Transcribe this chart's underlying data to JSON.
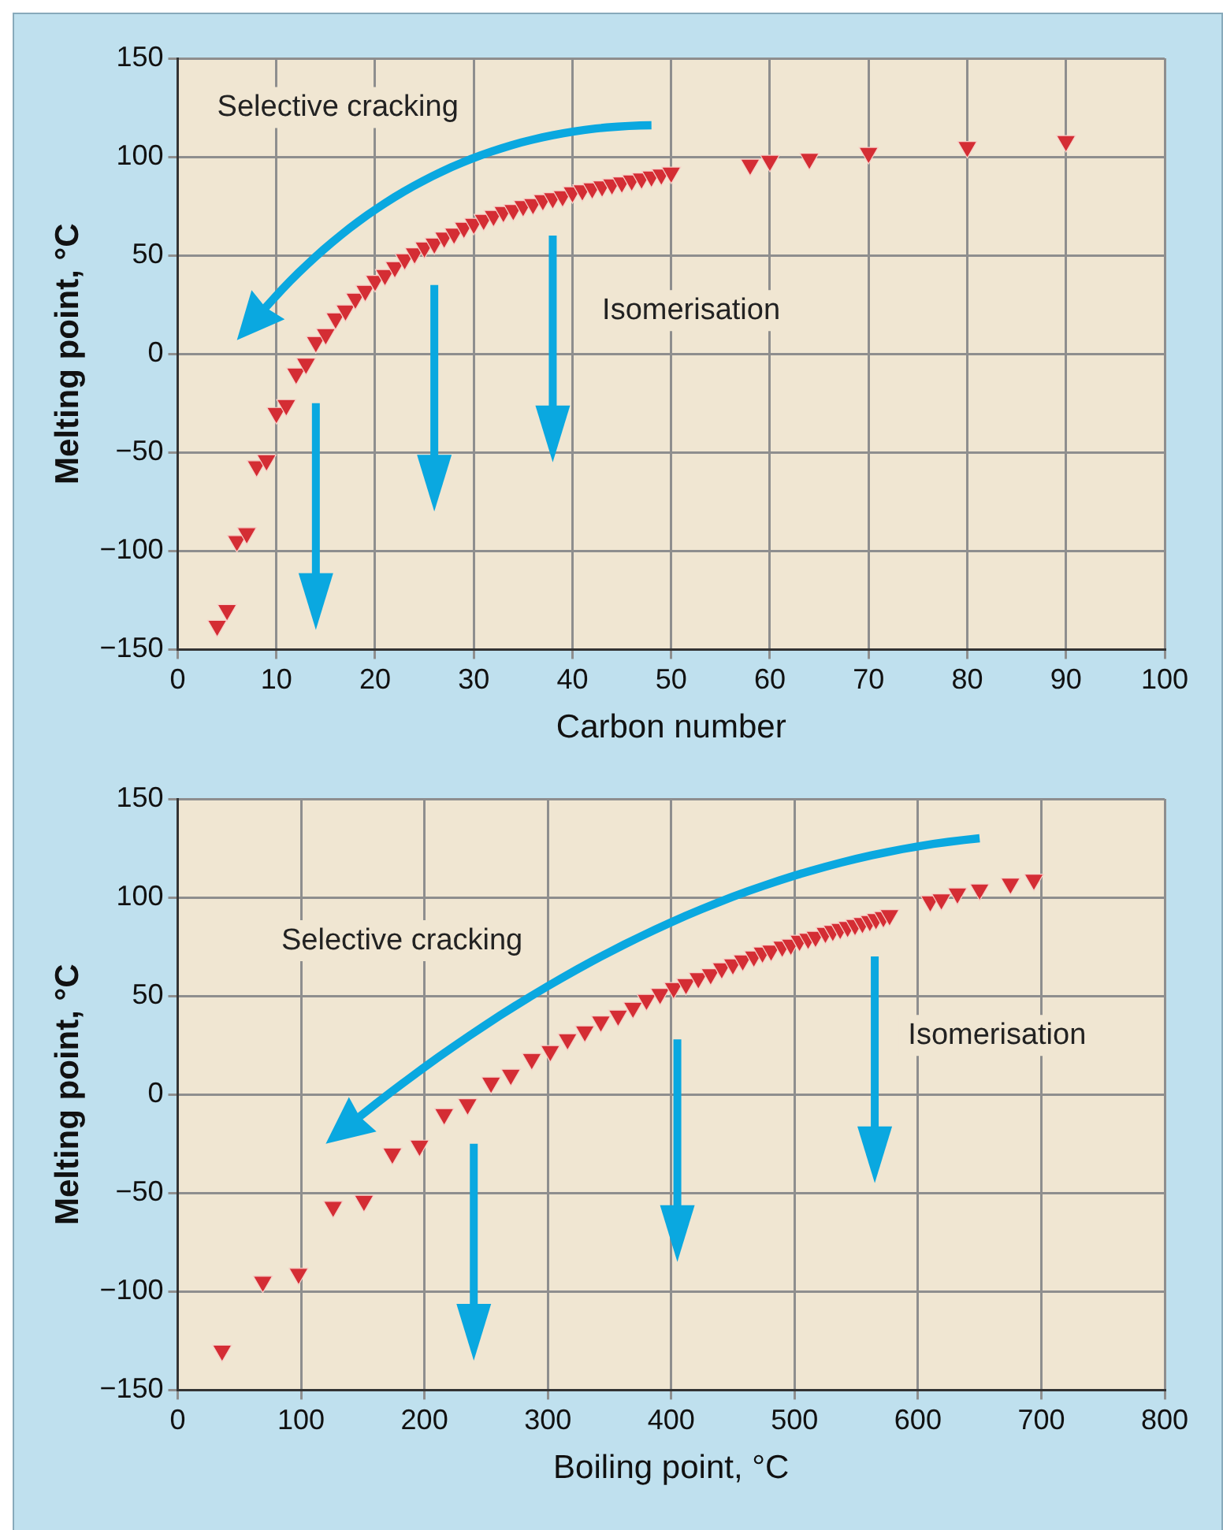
{
  "chart_data": [
    {
      "type": "scatter",
      "xlabel": "Carbon number",
      "ylabel": "Melting point, °C",
      "annotations": [
        "Selective cracking",
        "Isomerisation"
      ],
      "x": [
        4,
        5,
        6,
        7,
        8,
        9,
        10,
        11,
        12,
        13,
        14,
        15,
        16,
        17,
        18,
        19,
        20,
        21,
        22,
        23,
        24,
        25,
        26,
        27,
        28,
        29,
        30,
        31,
        32,
        33,
        34,
        35,
        36,
        37,
        38,
        39,
        40,
        41,
        42,
        43,
        44,
        45,
        46,
        47,
        48,
        49,
        50,
        58,
        60,
        64,
        70,
        80,
        90
      ],
      "series": [
        {
          "color": "#d42d34",
          "values": [
            -138,
            -130,
            -95,
            -91,
            -57,
            -54,
            -30,
            -26,
            -10,
            -5,
            6,
            10,
            18,
            22,
            28,
            32,
            37,
            40,
            44,
            48,
            51,
            54,
            56,
            59,
            61,
            64,
            66,
            68,
            70,
            72,
            73,
            75,
            76,
            78,
            79,
            80,
            82,
            83,
            84,
            85,
            86,
            87,
            88,
            89,
            90,
            91,
            92,
            96,
            98,
            99,
            102,
            105,
            108
          ]
        }
      ],
      "xlim": [
        0,
        100
      ],
      "ylim": [
        -150,
        150
      ],
      "xticks": [
        0,
        10,
        20,
        30,
        40,
        50,
        60,
        70,
        80,
        90,
        100
      ],
      "yticks": [
        -150,
        -100,
        -50,
        0,
        50,
        100,
        150
      ],
      "grid": true,
      "legend": false,
      "marker": "triangle"
    },
    {
      "type": "scatter",
      "xlabel": "Boiling point, °C",
      "ylabel": "Melting point, °C",
      "annotations": [
        "Selective cracking",
        "Isomerisation"
      ],
      "x": [
        36,
        69,
        98,
        126,
        151,
        174,
        196,
        216,
        235,
        254,
        270,
        287,
        302,
        316,
        330,
        343,
        357,
        369,
        380,
        391,
        402,
        412,
        422,
        432,
        441,
        450,
        458,
        467,
        474,
        481,
        490,
        497,
        504,
        511,
        517,
        525,
        531,
        537,
        543,
        549,
        555,
        561,
        566,
        572,
        577,
        610,
        619,
        632,
        650,
        675,
        694
      ],
      "series": [
        {
          "color": "#d42d34",
          "values": [
            -130,
            -95,
            -91,
            -57,
            -54,
            -30,
            -26,
            -10,
            -5,
            6,
            10,
            18,
            22,
            28,
            32,
            37,
            40,
            44,
            48,
            51,
            54,
            56,
            59,
            61,
            64,
            66,
            68,
            70,
            72,
            73,
            75,
            76,
            78,
            79,
            80,
            82,
            83,
            84,
            85,
            86,
            87,
            88,
            89,
            90,
            91,
            98,
            99,
            102,
            104,
            107,
            109
          ]
        }
      ],
      "xlim": [
        0,
        800
      ],
      "ylim": [
        -150,
        150
      ],
      "xticks": [
        0,
        100,
        200,
        300,
        400,
        500,
        600,
        700,
        800
      ],
      "yticks": [
        -150,
        -100,
        -50,
        0,
        50,
        100,
        150
      ],
      "grid": true,
      "legend": false,
      "marker": "triangle"
    }
  ]
}
